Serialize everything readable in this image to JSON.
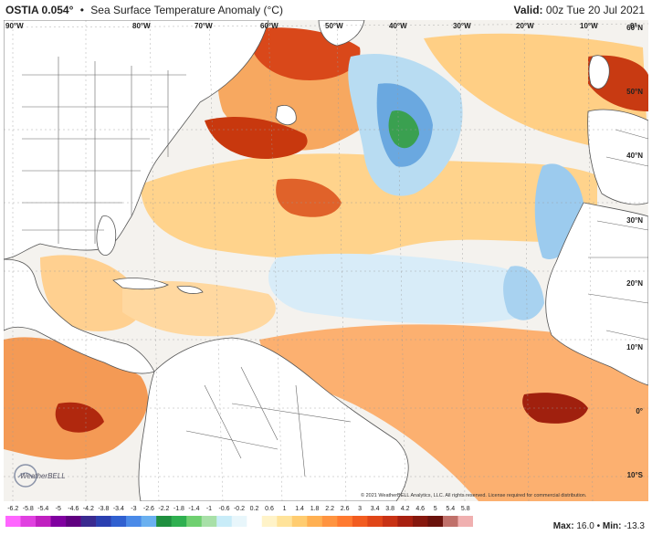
{
  "header": {
    "model": "OSTIA 0.054°",
    "separator": "•",
    "title": "Sea Surface Temperature Anomaly (°C)",
    "valid_label": "Valid:",
    "valid_time": "00z Tue 20 Jul 2021"
  },
  "longitude_labels": [
    "90°W",
    "80°W",
    "70°W",
    "60°W",
    "50°W",
    "40°W",
    "30°W",
    "20°W",
    "10°W",
    "0°"
  ],
  "latitude_labels": [
    "60°N",
    "50°N",
    "40°N",
    "30°N",
    "20°N",
    "10°N",
    "0°",
    "10°S"
  ],
  "credit": "© 2021 WeatherBELL Analytics, LLC. All rights reserved. License required for commercial distribution.",
  "logo_text": "WeatherBELL",
  "stats": {
    "max_label": "Max:",
    "max_value": "16.0",
    "sep": "•",
    "min_label": "Min:",
    "min_value": "-13.3"
  },
  "colorbar": {
    "ticks": [
      "-6.2",
      "-5.8",
      "-5.4",
      "-5",
      "-4.6",
      "-4.2",
      "-3.8",
      "-3.4",
      "-3",
      "-2.6",
      "-2.2",
      "-1.8",
      "-1.4",
      "-1",
      "-0.6",
      "-0.2",
      "0.2",
      "0.6",
      "1",
      "1.4",
      "1.8",
      "2.2",
      "2.6",
      "3",
      "3.4",
      "3.8",
      "4.2",
      "4.6",
      "5",
      "5.4",
      "5.8"
    ],
    "colors": [
      "#ff66ff",
      "#e040e0",
      "#c020c0",
      "#8000a0",
      "#600080",
      "#3a2a90",
      "#2a3fb0",
      "#3060d0",
      "#4a8ae8",
      "#6ab0f0",
      "#1f8f3f",
      "#2fb050",
      "#6fd070",
      "#a8e0a8",
      "#c8ecf8",
      "#e8f6fb",
      "#ffffff",
      "#fff3c8",
      "#ffe39a",
      "#ffcc70",
      "#ffb052",
      "#ff9440",
      "#ff7a30",
      "#f25c20",
      "#e04618",
      "#c83214",
      "#a82010",
      "#86180e",
      "#6a120c",
      "#c0706a",
      "#f0b0b0"
    ]
  }
}
